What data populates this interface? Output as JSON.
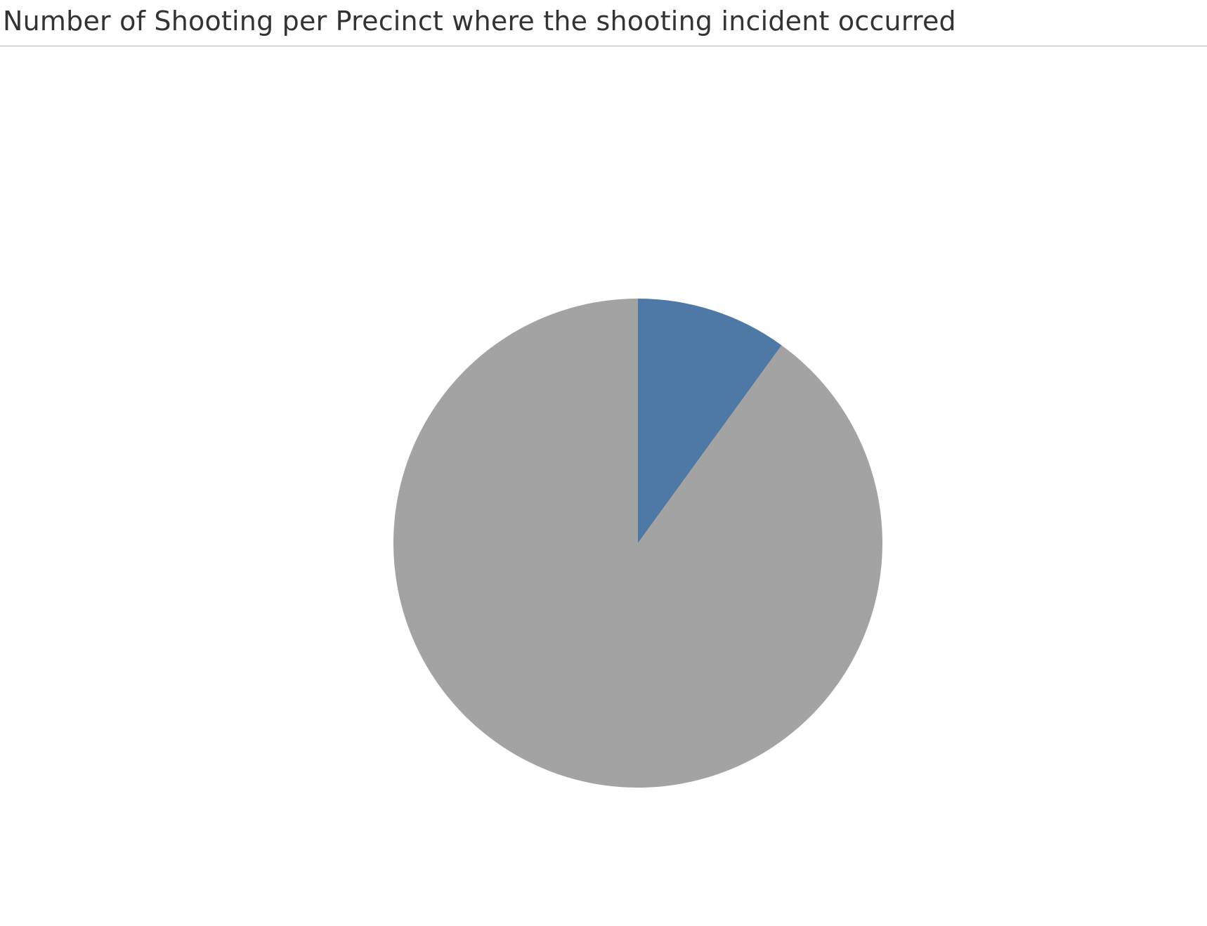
{
  "chart_data": {
    "type": "pie",
    "title": "Number of Shooting per Precinct where the shooting incident occurred",
    "categories": [
      "",
      ""
    ],
    "values": [
      10,
      90
    ],
    "colors": [
      "#4e79a7",
      "#a3a3a3"
    ],
    "start_angle_deg": 0,
    "direction": "clockwise",
    "legend": "none"
  }
}
